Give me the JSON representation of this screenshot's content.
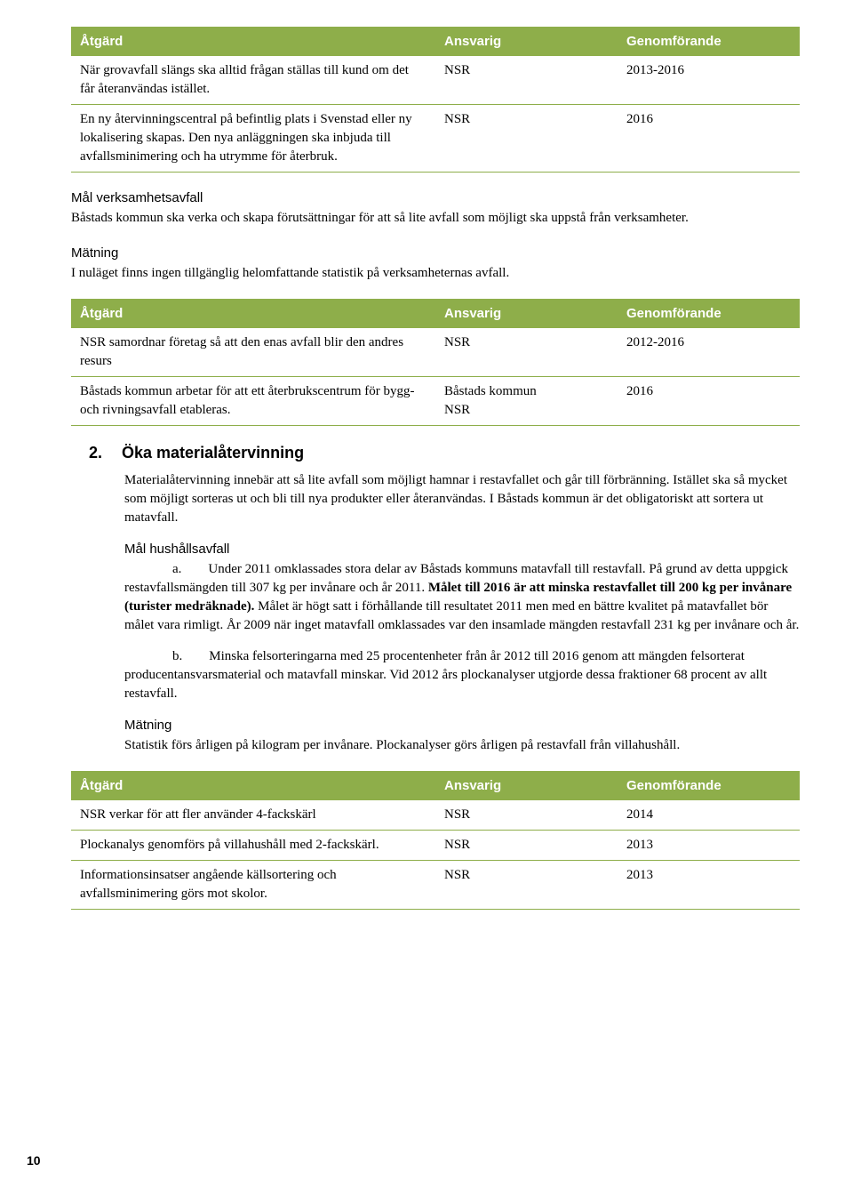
{
  "colors": {
    "header_bg": "#8eae4a",
    "row_border": "#8eae4a",
    "header_text": "#ffffff",
    "body_text": "#000000"
  },
  "table1": {
    "headers": [
      "Åtgärd",
      "Ansvarig",
      "Genomförande"
    ],
    "rows": [
      {
        "atgard": "När grovavfall slängs ska alltid frågan ställas till kund om det får återanvändas istället.",
        "ansvarig": "NSR",
        "genom": "2013-2016"
      },
      {
        "atgard": "En ny återvinningscentral på befintlig plats i Svenstad eller ny lokalisering skapas. Den nya anläggningen ska inbjuda till avfallsminimering och ha utrymme för återbruk.",
        "ansvarig": "NSR",
        "genom": "2016"
      }
    ]
  },
  "sec1": {
    "label": "Mål verksamhetsavfall",
    "text": "Båstads kommun ska verka och skapa förutsättningar för att så lite avfall som möjligt ska uppstå från verksamheter."
  },
  "sec2": {
    "label": "Mätning",
    "text": "I nuläget finns ingen tillgänglig helomfattande statistik på verksamheternas avfall."
  },
  "table2": {
    "headers": [
      "Åtgärd",
      "Ansvarig",
      "Genomförande"
    ],
    "rows": [
      {
        "atgard": "NSR samordnar företag så att den enas avfall blir den andres resurs",
        "ansvarig": "NSR",
        "genom": "2012-2016"
      },
      {
        "atgard": "Båstads kommun arbetar för att ett återbrukscentrum för bygg- och rivningsavfall etableras.",
        "ansvarig": "Båstads kommun\nNSR",
        "genom": "2016"
      }
    ]
  },
  "heading2": {
    "num": "2.",
    "title": "Öka materialåtervinning"
  },
  "intro2": "Materialåtervinning innebär att så lite avfall som möjligt hamnar i restavfallet och går till förbränning. Istället ska så mycket som möjligt sorteras ut och bli till nya produkter eller återanvändas. I Båstads kommun är det obligatoriskt att sortera ut matavfall.",
  "sec3": {
    "label": "Mål hushållsavfall",
    "a_lead": "a.",
    "a_pre": "Under 2011 omklassades stora delar av Båstads kommuns matavfall till restavfall. På grund av detta uppgick restavfallsmängden till 307 kg per invånare och år 2011.  ",
    "a_bold": "Målet till 2016 är att minska restavfallet till 200 kg per invånare (turister medräknade).",
    "a_post": " Målet är högt satt i förhållande till resultatet 2011 men med en bättre kvalitet på matavfallet bör målet vara rimligt. År 2009 när inget matavfall omklassades var den insamlade mängden restavfall 231 kg per invånare och år.",
    "b_lead": "b.",
    "b_text": "Minska felsorteringarna med 25 procentenheter från år 2012 till 2016 genom att mängden felsorterat producentansvarsmaterial och matavfall minskar. Vid 2012 års plockanalyser utgjorde dessa fraktioner 68 procent av allt restavfall."
  },
  "sec4": {
    "label": "Mätning",
    "text": "Statistik förs årligen på kilogram per invånare. Plockanalyser görs årligen på restavfall från villahushåll."
  },
  "table3": {
    "headers": [
      "Åtgärd",
      "Ansvarig",
      "Genomförande"
    ],
    "rows": [
      {
        "atgard": "NSR verkar för att fler använder 4-fackskärl",
        "ansvarig": "NSR",
        "genom": "2014"
      },
      {
        "atgard": "Plockanalys genomförs på villahushåll med 2-fackskärl.",
        "ansvarig": "NSR",
        "genom": "2013"
      },
      {
        "atgard": "Informationsinsatser angående källsortering och avfallsminimering görs mot skolor.",
        "ansvarig": "NSR",
        "genom": "2013"
      }
    ]
  },
  "page_number": "10"
}
